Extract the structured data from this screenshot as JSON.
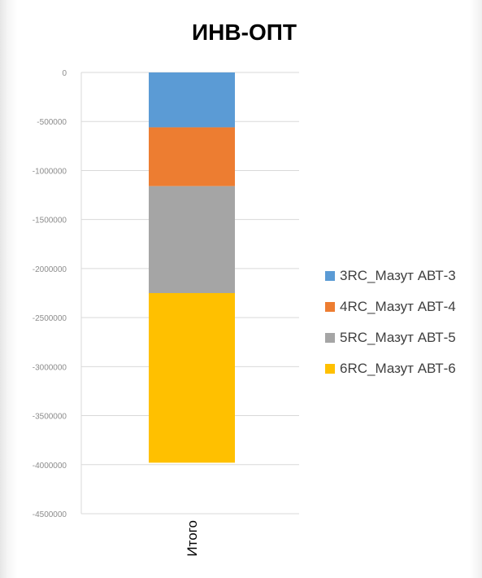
{
  "chart_data": {
    "type": "bar",
    "stacked": true,
    "title": "ИНВ-ОПТ",
    "xlabel": "",
    "ylabel": "",
    "categories": [
      "Итого"
    ],
    "ylim": [
      -4500000,
      0
    ],
    "yticks": [
      0,
      -500000,
      -1000000,
      -1500000,
      -2000000,
      -2500000,
      -3000000,
      -3500000,
      -4000000,
      -4500000
    ],
    "grid": true,
    "legend_position": "right",
    "series": [
      {
        "name": "3RC_Мазут АВТ-3",
        "values": [
          -560000
        ],
        "color": "#5b9bd5"
      },
      {
        "name": "4RC_Мазут АВТ-4",
        "values": [
          -600000
        ],
        "color": "#ed7d31"
      },
      {
        "name": "5RC_Мазут АВТ-5",
        "values": [
          -1090000
        ],
        "color": "#a5a5a5"
      },
      {
        "name": "6RC_Мазут АВТ-6",
        "values": [
          -1730000
        ],
        "color": "#ffc000"
      }
    ]
  }
}
